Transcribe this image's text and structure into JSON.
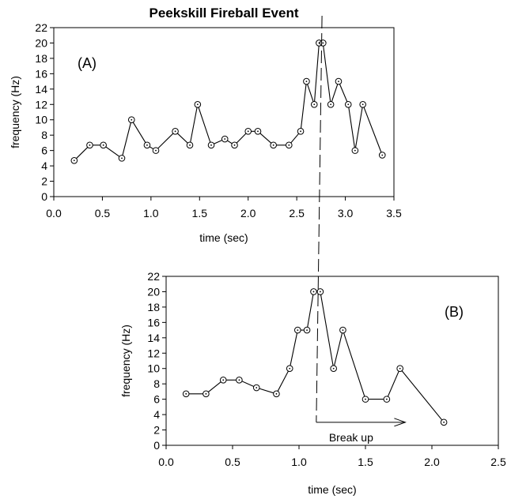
{
  "title": "Peekskill Fireball Event",
  "chart_data": [
    {
      "type": "line",
      "panel_label": "(A)",
      "xlabel": "time (sec)",
      "ylabel": "frequency (Hz)",
      "xlim": [
        0.0,
        3.5
      ],
      "ylim": [
        0,
        22
      ],
      "xticks": [
        "0.0",
        "0.5",
        "1.0",
        "1.5",
        "2.0",
        "2.5",
        "3.0",
        "3.5"
      ],
      "yticks": [
        "0",
        "2",
        "4",
        "6",
        "8",
        "10",
        "12",
        "14",
        "16",
        "18",
        "20",
        "22"
      ],
      "grid": false,
      "markers": "open circles",
      "x": [
        0.21,
        0.37,
        0.51,
        0.7,
        0.8,
        0.96,
        1.05,
        1.25,
        1.4,
        1.48,
        1.62,
        1.76,
        1.86,
        2.0,
        2.1,
        2.26,
        2.42,
        2.54,
        2.6,
        2.68,
        2.73,
        2.77,
        2.85,
        2.93,
        3.03,
        3.1,
        3.18,
        3.38
      ],
      "y": [
        4.7,
        6.7,
        6.7,
        5.0,
        10.0,
        6.7,
        6.0,
        8.5,
        6.7,
        12.0,
        6.7,
        7.5,
        6.7,
        8.5,
        8.5,
        6.7,
        6.7,
        8.5,
        15.0,
        12.0,
        20.0,
        20.0,
        12.0,
        15.0,
        12.0,
        6.0,
        12.0,
        5.4
      ]
    },
    {
      "type": "line",
      "panel_label": "(B)",
      "xlabel": "time (sec)",
      "ylabel": "frequency (Hz)",
      "xlim": [
        0.0,
        2.5
      ],
      "ylim": [
        0,
        22
      ],
      "xticks": [
        "0.0",
        "0.5",
        "1.0",
        "1.5",
        "2.0",
        "2.5"
      ],
      "yticks": [
        "0",
        "2",
        "4",
        "6",
        "8",
        "10",
        "12",
        "14",
        "16",
        "18",
        "20",
        "22"
      ],
      "grid": false,
      "markers": "open circles",
      "x": [
        0.15,
        0.3,
        0.43,
        0.55,
        0.68,
        0.83,
        0.93,
        0.99,
        1.06,
        1.11,
        1.16,
        1.26,
        1.33,
        1.5,
        1.66,
        1.76,
        2.09
      ],
      "y": [
        6.7,
        6.7,
        8.5,
        8.5,
        7.5,
        6.7,
        10.0,
        15.0,
        15.0,
        20.0,
        20.0,
        10.0,
        15.0,
        6.0,
        6.0,
        10.0,
        3.0
      ],
      "annotations": [
        {
          "text": "Break up",
          "arrow_from_x": 1.13,
          "arrow_to_x": 1.8,
          "y": 3.0
        }
      ]
    }
  ],
  "breakup_line": {
    "style": "dashed",
    "time_panel_a": 2.76,
    "time_panel_b": 1.13
  }
}
